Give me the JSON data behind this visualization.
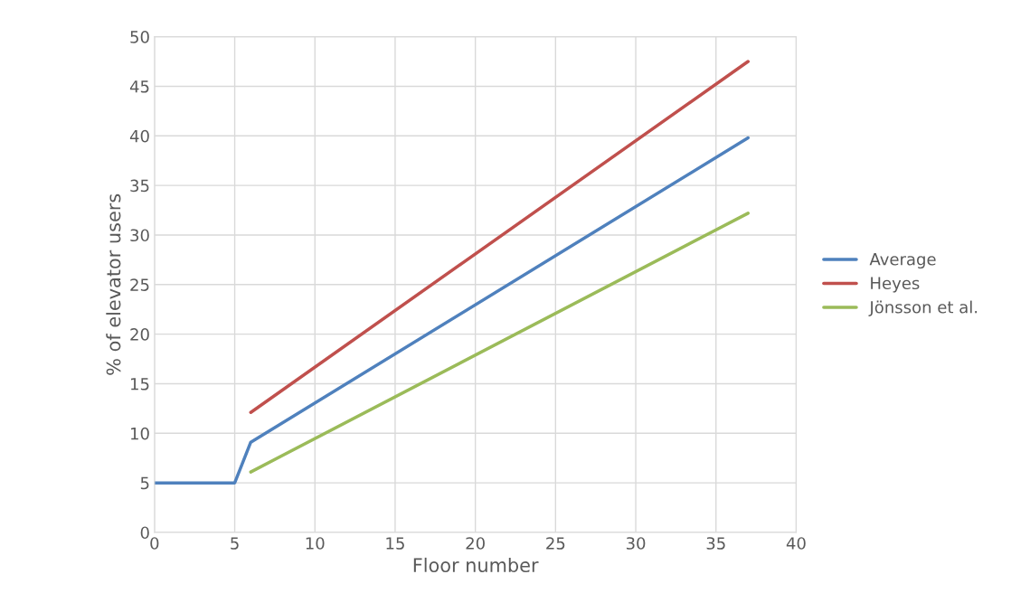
{
  "chart_data": {
    "type": "line",
    "xlabel": "Floor number",
    "ylabel": "% of elevator users",
    "xlim": [
      0,
      40
    ],
    "xticks": [
      0,
      5,
      10,
      15,
      20,
      25,
      30,
      35,
      40
    ],
    "ylim": [
      0,
      50
    ],
    "yticks": [
      0,
      5,
      10,
      15,
      20,
      25,
      30,
      35,
      40,
      45,
      50
    ],
    "grid": true,
    "legend": "right",
    "marker": "none",
    "line_style": "solid",
    "series": [
      {
        "name": "Average",
        "color": "#4f81bd",
        "x": [
          0,
          5,
          6,
          37
        ],
        "values": [
          5,
          5,
          9.1,
          39.8
        ]
      },
      {
        "name": "Heyes",
        "color": "#c0504d",
        "x": [
          6,
          37
        ],
        "values": [
          12.1,
          47.5
        ]
      },
      {
        "name": "Jönsson et al.",
        "color": "#9bbb59",
        "x": [
          6,
          37
        ],
        "values": [
          6.1,
          32.2
        ]
      }
    ]
  }
}
